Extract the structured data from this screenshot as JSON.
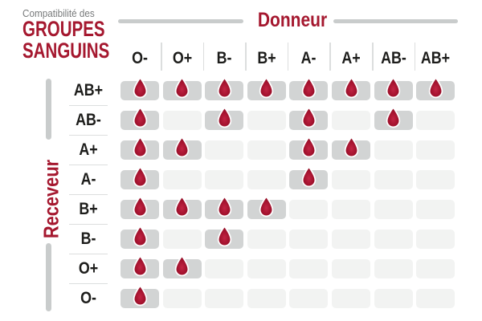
{
  "title": {
    "kicker": "Compatibilité des",
    "line1": "GROUPES",
    "line2": "SANGUINS"
  },
  "axes": {
    "donor": "Donneur",
    "recipient": "Receveur"
  },
  "icons": {
    "drop": "blood-drop-icon"
  },
  "colors": {
    "accent_red": "#a5182f",
    "drop_red_center": "#c22544",
    "drop_red_edge": "#8a0f24",
    "cell_filled": "#d2d4d4",
    "cell_empty": "#f2f3f2",
    "axis_bar_gray": "#c9cccc",
    "separator_gray": "#dcdede",
    "kicker_gray": "#77797a",
    "text_black": "#1d1d1b"
  },
  "chart_data": {
    "type": "heatmap",
    "title": "Compatibilité des GROUPES SANGUINS",
    "x_axis_label": "Donneur",
    "y_axis_label": "Receveur",
    "x_categories": [
      "O-",
      "O+",
      "B-",
      "B+",
      "A-",
      "A+",
      "AB-",
      "AB+"
    ],
    "y_categories": [
      "AB+",
      "AB-",
      "A+",
      "A-",
      "B+",
      "B-",
      "O+",
      "O-"
    ],
    "values": [
      [
        1,
        1,
        1,
        1,
        1,
        1,
        1,
        1
      ],
      [
        1,
        0,
        1,
        0,
        1,
        0,
        1,
        0
      ],
      [
        1,
        1,
        0,
        0,
        1,
        1,
        0,
        0
      ],
      [
        1,
        0,
        0,
        0,
        1,
        0,
        0,
        0
      ],
      [
        1,
        1,
        1,
        1,
        0,
        0,
        0,
        0
      ],
      [
        1,
        0,
        1,
        0,
        0,
        0,
        0,
        0
      ],
      [
        1,
        1,
        0,
        0,
        0,
        0,
        0,
        0
      ],
      [
        1,
        0,
        0,
        0,
        0,
        0,
        0,
        0
      ]
    ],
    "value_meaning": "1 = compatible (blood drop icon shown in gray cell), 0 = not compatible (empty light-gray cell)",
    "legend": "none",
    "grid": "off"
  }
}
